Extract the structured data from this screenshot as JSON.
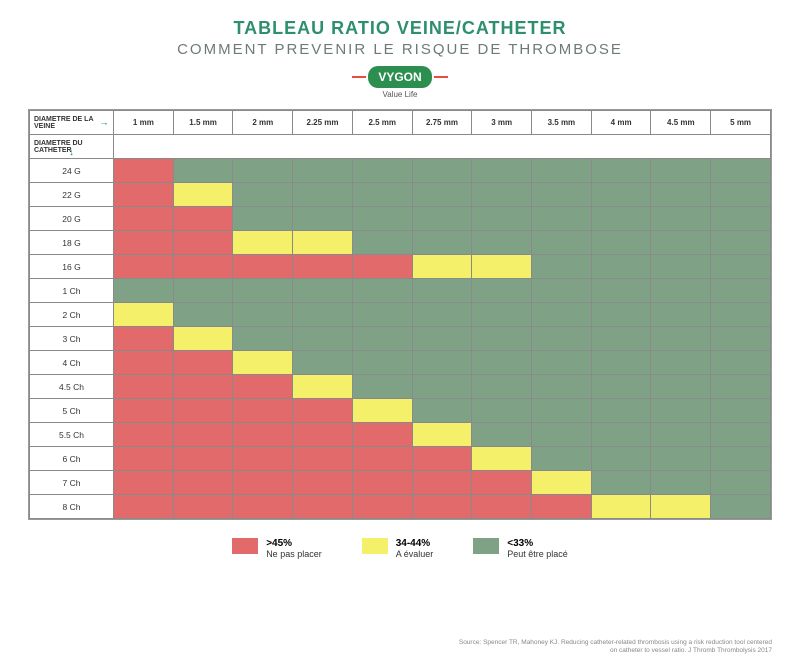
{
  "title": "TABLEAU RATIO VEINE/CATHETER",
  "subtitle": "COMMENT PREVENIR LE RISQUE DE THROMBOSE",
  "logo": {
    "brand": "VYGON",
    "tagline": "Value Life"
  },
  "table": {
    "vein_header_label": "DIAMETRE DE LA VEINE",
    "catheter_header_label": "DIAMETRE DU CATHETER",
    "vein_diameters": [
      "1 mm",
      "1.5 mm",
      "2 mm",
      "2.25 mm",
      "2.5 mm",
      "2.75 mm",
      "3 mm",
      "3.5 mm",
      "4 mm",
      "4.5 mm",
      "5 mm"
    ],
    "bold_column_index": 9,
    "catheters": [
      "24 G",
      "22 G",
      "20 G",
      "18 G",
      "16 G",
      "1 Ch",
      "2 Ch",
      "3 Ch",
      "4 Ch",
      "4.5 Ch",
      "5 Ch",
      "5.5 Ch",
      "6 Ch",
      "7 Ch",
      "8 Ch"
    ],
    "colors": {
      "red": "#e36a6a",
      "yellow": "#f4f06a",
      "green": "#7fa287"
    },
    "cells": [
      [
        "red",
        "green",
        "green",
        "green",
        "green",
        "green",
        "green",
        "green",
        "green",
        "green",
        "green"
      ],
      [
        "red",
        "yellow",
        "green",
        "green",
        "green",
        "green",
        "green",
        "green",
        "green",
        "green",
        "green"
      ],
      [
        "red",
        "red",
        "green",
        "green",
        "green",
        "green",
        "green",
        "green",
        "green",
        "green",
        "green"
      ],
      [
        "red",
        "red",
        "yellow",
        "yellow",
        "green",
        "green",
        "green",
        "green",
        "green",
        "green",
        "green"
      ],
      [
        "red",
        "red",
        "red",
        "red",
        "red",
        "yellow",
        "yellow",
        "green",
        "green",
        "green",
        "green"
      ],
      [
        "green",
        "green",
        "green",
        "green",
        "green",
        "green",
        "green",
        "green",
        "green",
        "green",
        "green"
      ],
      [
        "yellow",
        "green",
        "green",
        "green",
        "green",
        "green",
        "green",
        "green",
        "green",
        "green",
        "green"
      ],
      [
        "red",
        "yellow",
        "green",
        "green",
        "green",
        "green",
        "green",
        "green",
        "green",
        "green",
        "green"
      ],
      [
        "red",
        "red",
        "yellow",
        "green",
        "green",
        "green",
        "green",
        "green",
        "green",
        "green",
        "green"
      ],
      [
        "red",
        "red",
        "red",
        "yellow",
        "green",
        "green",
        "green",
        "green",
        "green",
        "green",
        "green"
      ],
      [
        "red",
        "red",
        "red",
        "red",
        "yellow",
        "green",
        "green",
        "green",
        "green",
        "green",
        "green"
      ],
      [
        "red",
        "red",
        "red",
        "red",
        "red",
        "yellow",
        "green",
        "green",
        "green",
        "green",
        "green"
      ],
      [
        "red",
        "red",
        "red",
        "red",
        "red",
        "red",
        "yellow",
        "green",
        "green",
        "green",
        "green"
      ],
      [
        "red",
        "red",
        "red",
        "red",
        "red",
        "red",
        "red",
        "yellow",
        "green",
        "green",
        "green"
      ],
      [
        "red",
        "red",
        "red",
        "red",
        "red",
        "red",
        "red",
        "red",
        "yellow",
        "yellow",
        "green"
      ]
    ]
  },
  "legend": [
    {
      "key": "red",
      "pct": ">45%",
      "desc": "Ne pas placer"
    },
    {
      "key": "yellow",
      "pct": "34-44%",
      "desc": "A évaluer"
    },
    {
      "key": "green",
      "pct": "<33%",
      "desc": "Peut être placé"
    }
  ],
  "source": "Source: Spencer TR, Mahoney KJ. Reducing catheter-related thrombosis using a risk reduction tool centered on catheter to vessel ratio. J Thromb Thrombolysis 2017"
}
